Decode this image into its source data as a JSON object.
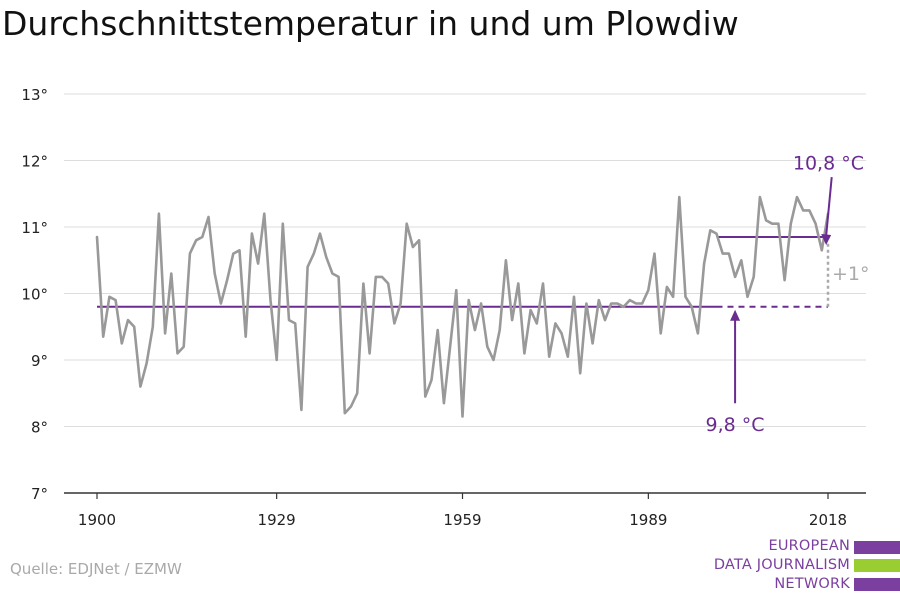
{
  "title": "Durchschnittstemperatur in und um Plowdiw",
  "source": "Quelle: EDJNet / EZMW",
  "logo": {
    "lines": [
      "EUROPEAN",
      "DATA JOURNALISM",
      "NETWORK"
    ],
    "colors": {
      "purple": "#7b3fa0",
      "green": "#9acd32"
    }
  },
  "chart_data": {
    "type": "line",
    "title": "Durchschnittstemperatur in und um Plowdiw",
    "xlabel": "",
    "ylabel": "",
    "xlim": [
      1900,
      2018
    ],
    "ylim": [
      7,
      13
    ],
    "x_ticks": [
      1900,
      1929,
      1959,
      1989,
      2018
    ],
    "x_tick_labels": [
      "1900",
      "1929",
      "1959",
      "1989",
      "2018"
    ],
    "y_ticks": [
      7,
      8,
      9,
      10,
      11,
      12,
      13
    ],
    "y_tick_labels": [
      "7°",
      "8°",
      "9°",
      "10°",
      "11°",
      "12°",
      "13°"
    ],
    "grid": "horizontal",
    "colors": {
      "series": "#999999",
      "reference": "#6a2c91",
      "gridline": "#dddddd",
      "axis": "#333333",
      "diff": "#aaaaaa"
    },
    "series": [
      {
        "name": "",
        "x": [
          1900,
          1901,
          1902,
          1903,
          1904,
          1905,
          1906,
          1907,
          1908,
          1909,
          1910,
          1911,
          1912,
          1913,
          1914,
          1915,
          1916,
          1917,
          1918,
          1919,
          1920,
          1921,
          1922,
          1923,
          1924,
          1925,
          1926,
          1927,
          1928,
          1929,
          1930,
          1931,
          1932,
          1933,
          1934,
          1935,
          1936,
          1937,
          1938,
          1939,
          1940,
          1941,
          1942,
          1943,
          1944,
          1945,
          1946,
          1947,
          1948,
          1949,
          1950,
          1951,
          1952,
          1953,
          1954,
          1955,
          1956,
          1957,
          1958,
          1959,
          1960,
          1961,
          1962,
          1963,
          1964,
          1965,
          1966,
          1967,
          1968,
          1969,
          1970,
          1971,
          1972,
          1973,
          1974,
          1975,
          1976,
          1977,
          1978,
          1979,
          1980,
          1981,
          1982,
          1983,
          1984,
          1985,
          1986,
          1987,
          1988,
          1989,
          1990,
          1991,
          1992,
          1993,
          1994,
          1995,
          1996,
          1997,
          1998,
          1999,
          2000,
          2001,
          2002,
          2003,
          2004,
          2005,
          2006,
          2007,
          2008,
          2009,
          2010,
          2011,
          2012,
          2013,
          2014,
          2015,
          2016,
          2017,
          2018
        ],
        "y": [
          10.85,
          9.35,
          9.95,
          9.9,
          9.25,
          9.6,
          9.5,
          8.6,
          8.95,
          9.5,
          11.2,
          9.4,
          10.3,
          9.1,
          9.2,
          10.6,
          10.8,
          10.85,
          11.15,
          10.3,
          9.85,
          10.2,
          10.6,
          10.65,
          9.35,
          10.9,
          10.45,
          11.2,
          9.9,
          9.0,
          11.05,
          9.6,
          9.55,
          8.25,
          10.4,
          10.6,
          10.9,
          10.55,
          10.3,
          10.25,
          8.2,
          8.3,
          8.5,
          10.15,
          9.1,
          10.25,
          10.25,
          10.15,
          9.55,
          9.85,
          11.05,
          10.7,
          10.8,
          8.45,
          8.7,
          9.45,
          8.35,
          9.2,
          10.05,
          8.15,
          9.9,
          9.45,
          9.85,
          9.2,
          9.0,
          9.45,
          10.5,
          9.6,
          10.15,
          9.1,
          9.75,
          9.55,
          10.15,
          9.05,
          9.55,
          9.4,
          9.05,
          9.95,
          8.8,
          9.85,
          9.25,
          9.9,
          9.6,
          9.85,
          9.85,
          9.8,
          9.9,
          9.85,
          9.85,
          10.05,
          10.6,
          9.4,
          10.1,
          9.95,
          11.45,
          9.95,
          9.8,
          9.4,
          10.45,
          10.95,
          10.9,
          10.6,
          10.6,
          10.25,
          10.5,
          9.95,
          10.25,
          11.45,
          11.1,
          11.05,
          11.05,
          10.2,
          11.05,
          11.45,
          11.25,
          11.25,
          11.05,
          10.65,
          11.2
        ]
      }
    ],
    "reference_lines": [
      {
        "label": "9,8 °C",
        "value": 9.8,
        "from": 1900,
        "to": 2000,
        "dashed_to": 2018
      },
      {
        "label": "10,8 °C",
        "value": 10.85,
        "from": 2000,
        "to": 2018
      }
    ],
    "difference_label": "+1°"
  }
}
